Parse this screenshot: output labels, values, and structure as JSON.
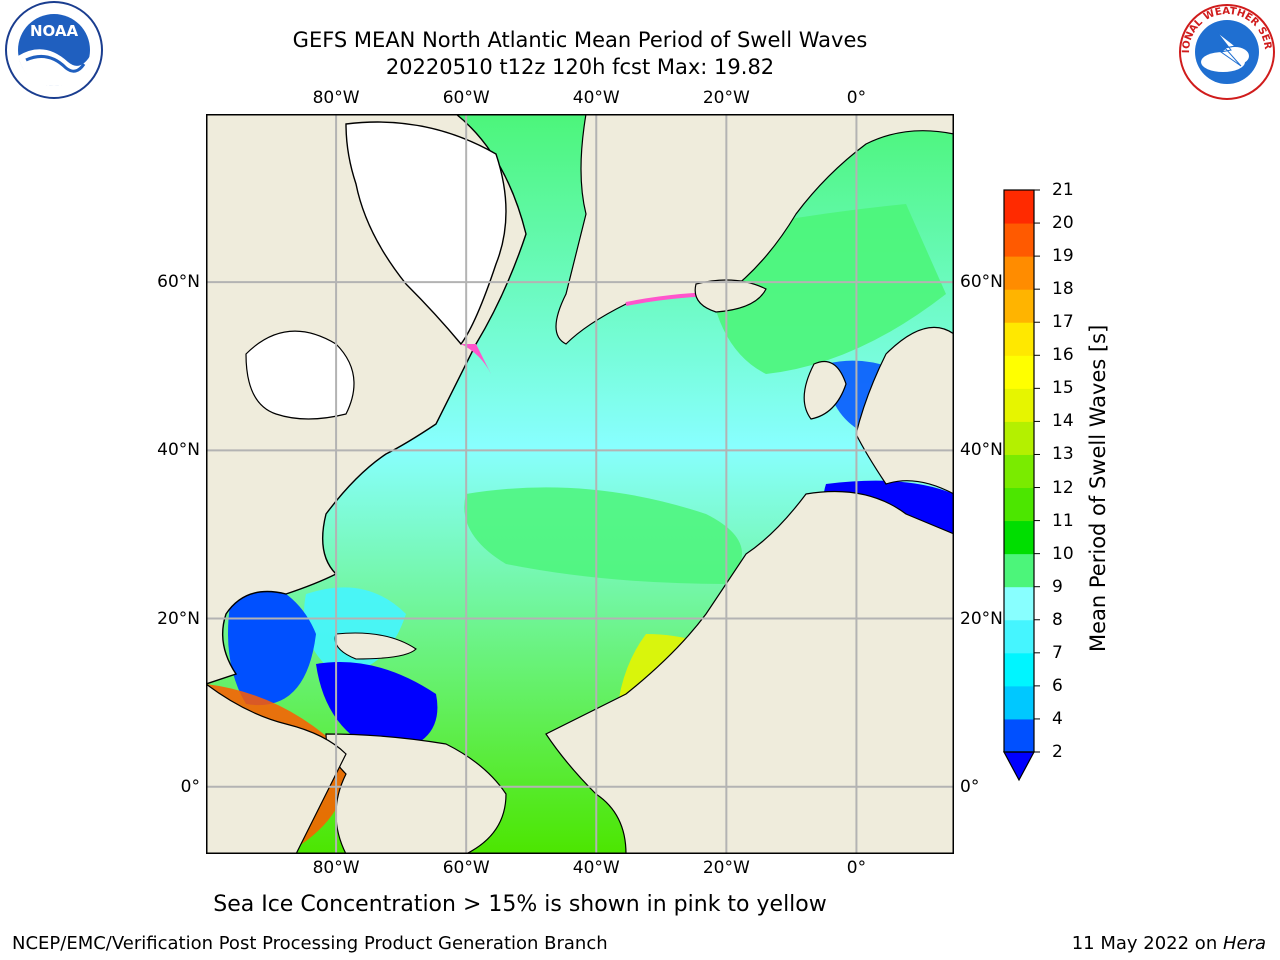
{
  "header": {
    "title_line1": "GEFS MEAN North Atlantic Mean Period of Swell Waves",
    "title_line2": "20220510 t12z 120h fcst   Max: 19.82"
  },
  "logos": {
    "left": "NOAA",
    "right": "NATIONAL WEATHER SERVICE"
  },
  "map": {
    "lon_ticks": [
      "80°W",
      "60°W",
      "40°W",
      "20°W",
      "0°"
    ],
    "lat_ticks": [
      "60°N",
      "40°N",
      "20°N",
      "0°"
    ],
    "lon_range": [
      -100,
      15
    ],
    "lat_range": [
      -8,
      80
    ],
    "colors": {
      "land": "#efecdc",
      "ice_free_land": "#ffffff",
      "grid": "#b3b3b3"
    }
  },
  "colorbar": {
    "title": "Mean Period of Swell Waves [s]",
    "labels": [
      "2",
      "4",
      "6",
      "7",
      "8",
      "9",
      "10",
      "11",
      "12",
      "13",
      "14",
      "15",
      "16",
      "17",
      "18",
      "19",
      "20",
      "21"
    ],
    "colors": [
      "#0050ff",
      "#00c8ff",
      "#00f5ff",
      "#45f5ff",
      "#88ffff",
      "#4cf57a",
      "#00de00",
      "#4ce600",
      "#7aeb00",
      "#b4f000",
      "#e6f500",
      "#ffff00",
      "#ffe800",
      "#ffb400",
      "#ff8c00",
      "#ff5a00",
      "#ff2a00"
    ],
    "extend_color": "#0000ff"
  },
  "caption": "Sea Ice Concentration > 15% is shown in pink to yellow",
  "footer": {
    "left": "NCEP/EMC/Verification Post Processing Product Generation Branch",
    "right_prefix": "11 May 2022 on ",
    "right_host": "Hera"
  }
}
